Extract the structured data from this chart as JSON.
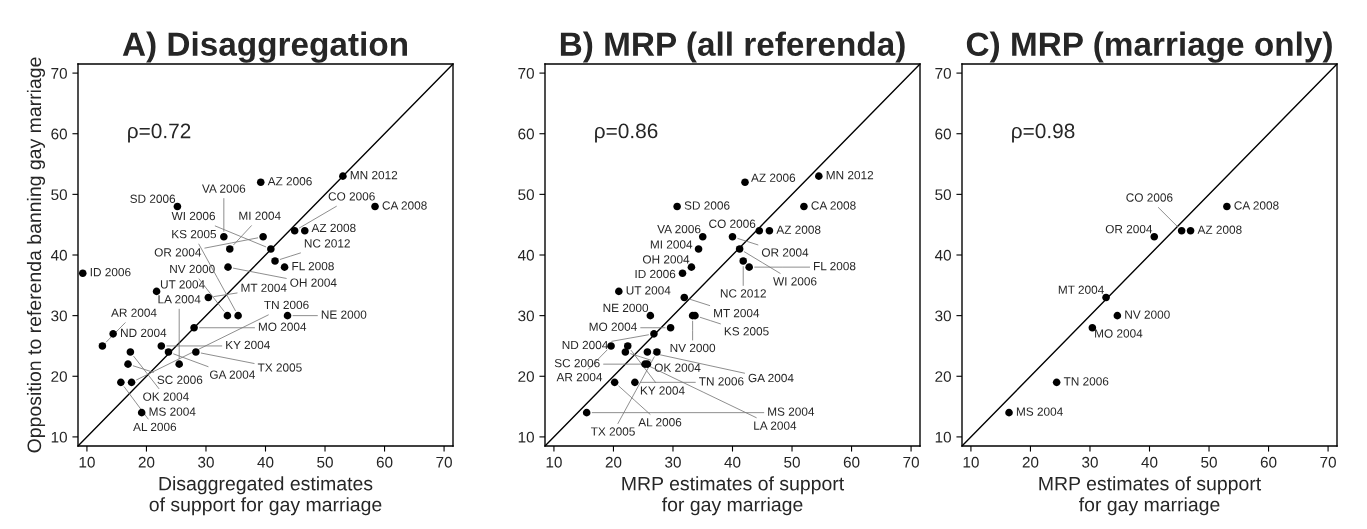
{
  "chart_data": [
    {
      "type": "scatter",
      "title": "A) Disaggregation",
      "xlabel": "Disaggregated estimates\nof support for gay marriage",
      "ylabel": "Opposition to referenda banning gay marriage",
      "xlim": [
        8.5,
        71.5
      ],
      "ylim": [
        8.5,
        71.5
      ],
      "xticks": [
        10,
        20,
        30,
        40,
        50,
        60,
        70
      ],
      "yticks": [
        10,
        20,
        30,
        40,
        50,
        60,
        70
      ],
      "grid": false,
      "series": [
        {
          "marker": "circle",
          "color": "#000000",
          "x": [
            9.3,
            14.4,
            12.6,
            17.3,
            16.9,
            15.7,
            17.5,
            19.2,
            22.5,
            23.7,
            28.3,
            25.5,
            28.0,
            21.7,
            30.4,
            33.6,
            35.4,
            43.7,
            33.7,
            43.2,
            41.6,
            34.0,
            40.9,
            33.0,
            39.6,
            44.9,
            46.6,
            25.2,
            39.2,
            53.0,
            58.4
          ],
          "values": [
            37,
            27,
            25,
            24,
            22,
            19,
            19,
            14,
            25,
            24,
            24,
            22,
            28,
            34,
            33,
            30,
            30,
            30,
            38,
            38,
            39,
            41,
            41,
            43,
            43,
            44,
            44,
            48,
            52,
            53,
            48
          ]
        },
        {
          "type": "line",
          "color": "#000000",
          "x": [
            8.5,
            71.5
          ],
          "values": [
            8.5,
            71.5
          ]
        }
      ],
      "annotations": [
        "ρ=0.72",
        {
          "text": "ID 2006",
          "x": 9.3,
          "y": 37
        },
        {
          "text": "ND 2004",
          "x": 14.4,
          "y": 27
        },
        {
          "text": "AR 2004",
          "x": 12.6,
          "y": 25
        },
        {
          "text": "OK 2004",
          "x": 17.3,
          "y": 24
        },
        {
          "text": "SC 2006",
          "x": 16.9,
          "y": 22
        },
        {
          "text": "AL 2006",
          "x": 15.7,
          "y": 19
        },
        {
          "text": "TN 2006",
          "x": 17.5,
          "y": 19
        },
        {
          "text": "MS 2004",
          "x": 19.2,
          "y": 14
        },
        {
          "text": "KY 2004",
          "x": 22.5,
          "y": 25
        },
        {
          "text": "GA 2004",
          "x": 23.7,
          "y": 24
        },
        {
          "text": "TX 2005",
          "x": 28.3,
          "y": 24
        },
        {
          "text": "LA 2004",
          "x": 25.5,
          "y": 22
        },
        {
          "text": "MO 2004",
          "x": 28.0,
          "y": 28
        },
        {
          "text": "UT 2004",
          "x": 21.7,
          "y": 34
        },
        {
          "text": "MT 2004",
          "x": 30.4,
          "y": 33
        },
        {
          "text": "NV 2000",
          "x": 33.6,
          "y": 30
        },
        {
          "text": "KS 2005",
          "x": 35.4,
          "y": 30
        },
        {
          "text": "NE 2000",
          "x": 43.7,
          "y": 30
        },
        {
          "text": "OH 2004",
          "x": 33.7,
          "y": 38
        },
        {
          "text": "FL 2008",
          "x": 43.2,
          "y": 38
        },
        {
          "text": "NC 2012",
          "x": 41.6,
          "y": 39
        },
        {
          "text": "MI 2004",
          "x": 34.0,
          "y": 41
        },
        {
          "text": "WI 2006",
          "x": 40.9,
          "y": 41
        },
        {
          "text": "VA 2006",
          "x": 33.0,
          "y": 43
        },
        {
          "text": "OR 2004",
          "x": 39.6,
          "y": 43
        },
        {
          "text": "CO 2006",
          "x": 44.9,
          "y": 44
        },
        {
          "text": "AZ 2008",
          "x": 46.6,
          "y": 44
        },
        {
          "text": "SD 2006",
          "x": 25.2,
          "y": 48
        },
        {
          "text": "AZ 2006",
          "x": 39.2,
          "y": 52
        },
        {
          "text": "MN 2012",
          "x": 53.0,
          "y": 53
        },
        {
          "text": "CA 2008",
          "x": 58.4,
          "y": 48
        }
      ]
    },
    {
      "type": "scatter",
      "title": "B) MRP (all referenda)",
      "xlabel": "MRP estimates of support\nfor gay marriage",
      "xlim": [
        8.5,
        71.5
      ],
      "ylim": [
        8.5,
        71.5
      ],
      "xticks": [
        10,
        20,
        30,
        40,
        50,
        60,
        70
      ],
      "yticks": [
        10,
        20,
        30,
        40,
        50,
        60,
        70
      ],
      "grid": false,
      "series": [
        {
          "marker": "circle",
          "color": "#000000",
          "x": [
            42.1,
            54.5,
            30.7,
            52.0,
            44.5,
            46.2,
            35.0,
            40.0,
            34.3,
            41.2,
            41.8,
            42.8,
            33.1,
            31.6,
            20.9,
            31.9,
            26.2,
            33.3,
            33.7,
            29.6,
            26.8,
            19.6,
            22.4,
            22.0,
            25.7,
            27.3,
            25.3,
            25.7,
            20.2,
            23.6,
            15.5
          ],
          "values": [
            52,
            53,
            48,
            48,
            44,
            44,
            43,
            43,
            41,
            41,
            39,
            38,
            38,
            37,
            34,
            33,
            30,
            30,
            30,
            28,
            27,
            25,
            25,
            24,
            24,
            24,
            22,
            22,
            19,
            19,
            14
          ]
        },
        {
          "type": "line",
          "color": "#000000",
          "x": [
            8.5,
            71.5
          ],
          "values": [
            8.5,
            71.5
          ]
        }
      ],
      "annotations": [
        "ρ=0.86",
        {
          "text": "AZ 2006",
          "x": 42.1,
          "y": 52
        },
        {
          "text": "MN 2012",
          "x": 54.5,
          "y": 53
        },
        {
          "text": "SD 2006",
          "x": 30.7,
          "y": 48
        },
        {
          "text": "CA 2008",
          "x": 52.0,
          "y": 48
        },
        {
          "text": "CO 2006",
          "x": 44.5,
          "y": 44
        },
        {
          "text": "AZ 2008",
          "x": 46.2,
          "y": 44
        },
        {
          "text": "VA 2006",
          "x": 35.0,
          "y": 43
        },
        {
          "text": "OR 2004",
          "x": 40.0,
          "y": 43
        },
        {
          "text": "MI 2004",
          "x": 34.3,
          "y": 41
        },
        {
          "text": "WI 2006",
          "x": 41.2,
          "y": 41
        },
        {
          "text": "NC 2012",
          "x": 41.8,
          "y": 39
        },
        {
          "text": "FL 2008",
          "x": 42.8,
          "y": 38
        },
        {
          "text": "OH 2004",
          "x": 33.1,
          "y": 38
        },
        {
          "text": "ID 2006",
          "x": 31.6,
          "y": 37
        },
        {
          "text": "UT 2004",
          "x": 20.9,
          "y": 34
        },
        {
          "text": "MT 2004",
          "x": 31.9,
          "y": 33
        },
        {
          "text": "NE 2000",
          "x": 26.2,
          "y": 30
        },
        {
          "text": "NV 2000",
          "x": 33.3,
          "y": 30
        },
        {
          "text": "KS 2005",
          "x": 33.7,
          "y": 30
        },
        {
          "text": "MO 2004",
          "x": 29.6,
          "y": 28
        },
        {
          "text": "ND 2004",
          "x": 26.8,
          "y": 27
        },
        {
          "text": "AR 2004",
          "x": 19.6,
          "y": 25
        },
        {
          "text": "KY 2004",
          "x": 22.4,
          "y": 25
        },
        {
          "text": "OK 2004",
          "x": 22.0,
          "y": 24
        },
        {
          "text": "GA 2004",
          "x": 25.7,
          "y": 24
        },
        {
          "text": "TX 2005",
          "x": 27.3,
          "y": 24
        },
        {
          "text": "LA 2004",
          "x": 25.3,
          "y": 22
        },
        {
          "text": "SC 2006",
          "x": 25.7,
          "y": 22
        },
        {
          "text": "AL 2006",
          "x": 20.2,
          "y": 19
        },
        {
          "text": "TN 2006",
          "x": 23.6,
          "y": 19
        },
        {
          "text": "MS 2004",
          "x": 15.5,
          "y": 14
        }
      ]
    },
    {
      "type": "scatter",
      "title": "C) MRP (marriage only)",
      "xlabel": "MRP estimates of support\nfor gay marriage",
      "xlim": [
        8.5,
        71.5
      ],
      "ylim": [
        8.5,
        71.5
      ],
      "xticks": [
        10,
        20,
        30,
        40,
        50,
        60,
        70
      ],
      "yticks": [
        10,
        20,
        30,
        40,
        50,
        60,
        70
      ],
      "grid": false,
      "series": [
        {
          "marker": "circle",
          "color": "#000000",
          "x": [
            53.0,
            45.4,
            46.9,
            40.8,
            32.7,
            34.6,
            30.4,
            24.4,
            16.4
          ],
          "values": [
            48,
            44,
            44,
            43,
            33,
            30,
            28,
            19,
            14
          ]
        },
        {
          "type": "line",
          "color": "#000000",
          "x": [
            8.5,
            71.5
          ],
          "values": [
            8.5,
            71.5
          ]
        }
      ],
      "annotations": [
        "ρ=0.98",
        {
          "text": "CA 2008",
          "x": 53.0,
          "y": 48
        },
        {
          "text": "CO 2006",
          "x": 45.4,
          "y": 44
        },
        {
          "text": "AZ 2008",
          "x": 46.9,
          "y": 44
        },
        {
          "text": "OR 2004",
          "x": 40.8,
          "y": 43
        },
        {
          "text": "MT 2004",
          "x": 32.7,
          "y": 33
        },
        {
          "text": "NV 2000",
          "x": 34.6,
          "y": 30
        },
        {
          "text": "MO 2004",
          "x": 30.4,
          "y": 28
        },
        {
          "text": "TN 2006",
          "x": 24.4,
          "y": 19
        },
        {
          "text": "MS 2004",
          "x": 16.4,
          "y": 14
        }
      ]
    }
  ]
}
